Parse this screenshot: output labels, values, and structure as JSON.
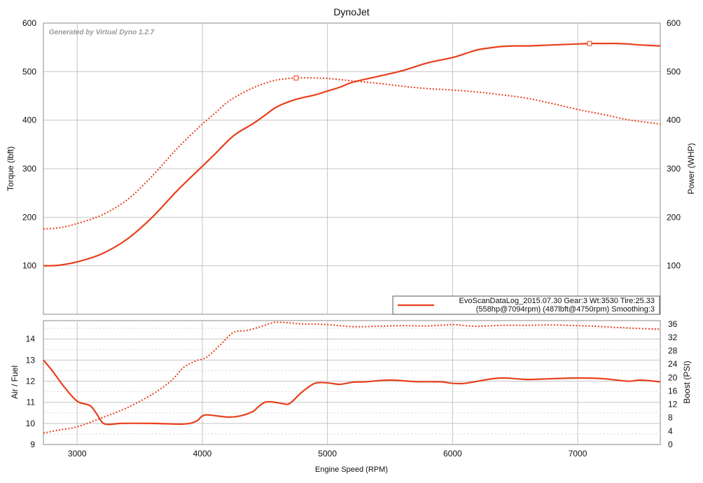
{
  "chart_data": [
    {
      "type": "line",
      "title": "DynoJet",
      "watermark": "Generated by Virtual Dyno 1.2.7",
      "xlabel": "",
      "ylabel": "Torque (lbft)",
      "y2label": "Power (WHP)",
      "xlim": [
        2730,
        7660
      ],
      "ylim": [
        0,
        600
      ],
      "y2lim": [
        0,
        600
      ],
      "y_ticks": [
        "100",
        "200",
        "300",
        "400",
        "500",
        "600"
      ],
      "y2_ticks": [
        "100",
        "200",
        "300",
        "400",
        "500",
        "600"
      ],
      "grid": true,
      "legend": {
        "placement": "bottom-right",
        "line1": "EvoScanDataLog_2015.07.30 Gear:3 Wt:3530 Tire:25.33",
        "line2": "(558hp@7094rpm) (487lbft@4750rpm) Smoothing:3"
      },
      "series": [
        {
          "role": "power",
          "style": "solid",
          "color": "#e8401c",
          "peak_marker": [
            7094,
            558
          ],
          "x": [
            2730,
            2850,
            3000,
            3200,
            3400,
            3600,
            3800,
            4000,
            4100,
            4250,
            4400,
            4500,
            4600,
            4750,
            4900,
            5000,
            5100,
            5200,
            5400,
            5600,
            5800,
            6000,
            6100,
            6200,
            6300,
            6400,
            6500,
            6600,
            6800,
            7000,
            7100,
            7200,
            7300,
            7400,
            7500,
            7660
          ],
          "y": [
            100,
            101,
            108,
            125,
            155,
            200,
            255,
            305,
            330,
            368,
            392,
            410,
            428,
            443,
            452,
            460,
            468,
            478,
            490,
            502,
            518,
            529,
            537,
            545,
            549,
            552,
            553,
            553,
            555,
            557,
            558,
            558,
            558,
            557,
            555,
            553
          ]
        },
        {
          "role": "torque",
          "style": "dotted",
          "color": "#e8401c",
          "peak_marker": [
            4750,
            487
          ],
          "x": [
            2730,
            2850,
            3000,
            3200,
            3400,
            3600,
            3800,
            4000,
            4100,
            4200,
            4300,
            4400,
            4500,
            4600,
            4750,
            4900,
            5000,
            5200,
            5400,
            5600,
            5800,
            6000,
            6200,
            6400,
            6600,
            6800,
            7000,
            7200,
            7400,
            7660
          ],
          "y": [
            176,
            178,
            187,
            205,
            236,
            285,
            342,
            392,
            414,
            437,
            453,
            466,
            476,
            483,
            487,
            487,
            486,
            481,
            476,
            470,
            465,
            462,
            458,
            452,
            445,
            434,
            422,
            412,
            401,
            392
          ]
        }
      ]
    },
    {
      "type": "line",
      "xlabel": "Engine Speed (RPM)",
      "ylabel": "Air / Fuel",
      "y2label": "Boost (PSI)",
      "xlim": [
        2730,
        7660
      ],
      "ylim": [
        9,
        14.87
      ],
      "y2lim": [
        0,
        37
      ],
      "x_ticks": [
        "3000",
        "4000",
        "5000",
        "6000",
        "7000"
      ],
      "x_tick_values": [
        3000,
        4000,
        5000,
        6000,
        7000
      ],
      "y_ticks": [
        "9",
        "10",
        "11",
        "12",
        "13",
        "14"
      ],
      "y2_ticks": [
        "0",
        "4",
        "8",
        "12",
        "16",
        "20",
        "24",
        "28",
        "32",
        "36"
      ],
      "grid": true,
      "series": [
        {
          "role": "air_fuel",
          "axis": "left",
          "style": "solid",
          "color": "#e8401c",
          "x": [
            2730,
            2800,
            2900,
            3000,
            3100,
            3150,
            3200,
            3250,
            3350,
            3600,
            3850,
            3950,
            4000,
            4050,
            4200,
            4300,
            4400,
            4450,
            4500,
            4550,
            4600,
            4650,
            4700,
            4800,
            4900,
            5000,
            5100,
            5200,
            5300,
            5500,
            5700,
            5900,
            6000,
            6100,
            6300,
            6400,
            6500,
            6600,
            6800,
            7000,
            7200,
            7400,
            7500,
            7660
          ],
          "y": [
            13.0,
            12.5,
            11.7,
            11.05,
            10.85,
            10.5,
            10.05,
            9.95,
            10.0,
            10.0,
            9.97,
            10.1,
            10.35,
            10.4,
            10.3,
            10.35,
            10.55,
            10.8,
            11.0,
            11.02,
            10.98,
            10.93,
            10.95,
            11.5,
            11.9,
            11.92,
            11.85,
            11.95,
            11.97,
            12.05,
            11.98,
            11.97,
            11.9,
            11.9,
            12.1,
            12.15,
            12.12,
            12.08,
            12.12,
            12.15,
            12.12,
            12.0,
            12.05,
            11.97
          ]
        },
        {
          "role": "boost",
          "axis": "right",
          "style": "dotted",
          "color": "#e8401c",
          "x": [
            2730,
            2850,
            3000,
            3200,
            3400,
            3600,
            3750,
            3850,
            3950,
            4000,
            4050,
            4150,
            4250,
            4350,
            4450,
            4550,
            4600,
            4700,
            4800,
            5000,
            5200,
            5400,
            5600,
            5800,
            6000,
            6100,
            6200,
            6400,
            6600,
            6800,
            7000,
            7200,
            7400,
            7660
          ],
          "y": [
            3.4,
            4.3,
            5.3,
            8.0,
            11.0,
            15.0,
            19.0,
            23.0,
            25.0,
            25.5,
            26.5,
            30.0,
            33.5,
            34.0,
            35.0,
            36.2,
            36.5,
            36.3,
            36.0,
            35.8,
            35.2,
            35.3,
            35.5,
            35.4,
            35.8,
            35.5,
            35.3,
            35.6,
            35.6,
            35.7,
            35.5,
            35.2,
            34.8,
            34.4
          ]
        }
      ]
    }
  ]
}
